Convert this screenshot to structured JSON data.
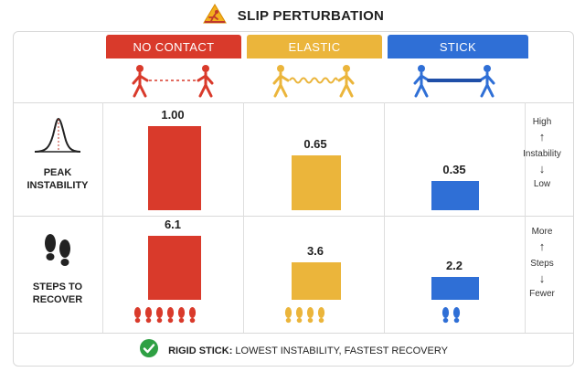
{
  "title": "SLIP PERTURBATION",
  "colors": {
    "no_contact": "#d93a2b",
    "elastic": "#ebb53b",
    "stick": "#2f6fd6",
    "check": "#2ea043"
  },
  "columns": [
    {
      "label": "NO CONTACT",
      "color": "#d93a2b",
      "icon": "two-figures-dashed-link-icon"
    },
    {
      "label": "ELASTIC",
      "color": "#ebb53b",
      "icon": "two-figures-spring-link-icon"
    },
    {
      "label": "STICK",
      "color": "#2f6fd6",
      "icon": "two-figures-rigid-stick-icon"
    }
  ],
  "rows": {
    "instability": {
      "label_line1": "PEAK",
      "label_line2": "INSTABILITY",
      "icon": "peak-curve-icon",
      "scale_top": "High",
      "scale_mid": "Instability",
      "scale_bottom": "Low"
    },
    "steps": {
      "label_line1": "STEPS TO",
      "label_line2": "RECOVER",
      "icon": "footprints-icon",
      "scale_top": "More",
      "scale_mid": "Steps",
      "scale_bottom": "Fewer"
    }
  },
  "chart_data": [
    {
      "type": "bar",
      "categories": [
        "NO CONTACT",
        "ELASTIC",
        "STICK"
      ],
      "values": [
        1.0,
        0.65,
        0.35
      ],
      "value_labels": [
        "1.00",
        "0.65",
        "0.35"
      ],
      "ylim": [
        0,
        1.0
      ]
    },
    {
      "type": "bar",
      "categories": [
        "NO CONTACT",
        "ELASTIC",
        "STICK"
      ],
      "values": [
        6.1,
        3.6,
        2.2
      ],
      "value_labels": [
        "6.1",
        "3.6",
        "2.2"
      ],
      "footprint_counts": [
        6,
        4,
        2
      ],
      "ylim": [
        0,
        6.1
      ]
    }
  ],
  "footer": {
    "bold": "RIGID STICK:",
    "rest": " LOWEST INSTABILITY, FASTEST RECOVERY",
    "icon": "check-circle-icon"
  }
}
